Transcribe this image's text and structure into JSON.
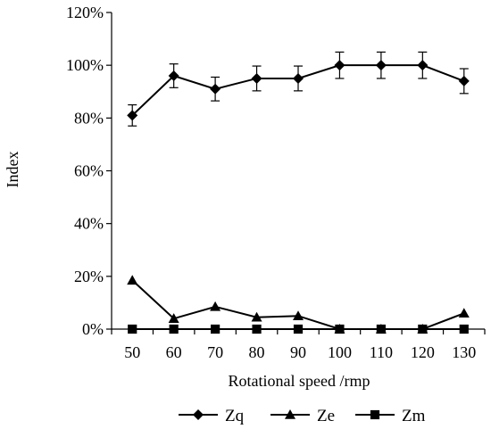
{
  "chart_data": {
    "type": "line",
    "title": "",
    "xlabel": "Rotational speed /rmp",
    "ylabel": "Index",
    "x": [
      50,
      60,
      70,
      80,
      90,
      100,
      110,
      120,
      130
    ],
    "x_ticks": [
      "50",
      "60",
      "70",
      "80",
      "90",
      "100",
      "110",
      "120",
      "130"
    ],
    "ylim": [
      0,
      120
    ],
    "y_ticks": [
      0,
      20,
      40,
      60,
      80,
      100,
      120
    ],
    "y_tick_labels": [
      "0%",
      "20%",
      "40%",
      "60%",
      "80%",
      "100%",
      "120%"
    ],
    "grid": false,
    "legend_position": "bottom",
    "series": [
      {
        "name": "Zq",
        "marker": "diamond",
        "values": [
          81,
          96,
          91,
          95,
          95,
          100,
          100,
          100,
          94
        ],
        "error": [
          4,
          4.5,
          4.5,
          4.7,
          4.7,
          5,
          5,
          5,
          4.7
        ]
      },
      {
        "name": "Ze",
        "marker": "triangle",
        "values": [
          18.5,
          4,
          8.5,
          4.5,
          5,
          0,
          0,
          0,
          6
        ]
      },
      {
        "name": "Zm",
        "marker": "square",
        "values": [
          0,
          0,
          0,
          0,
          0,
          0,
          0,
          0,
          0
        ]
      }
    ],
    "colors": {
      "line": "#000000"
    }
  }
}
